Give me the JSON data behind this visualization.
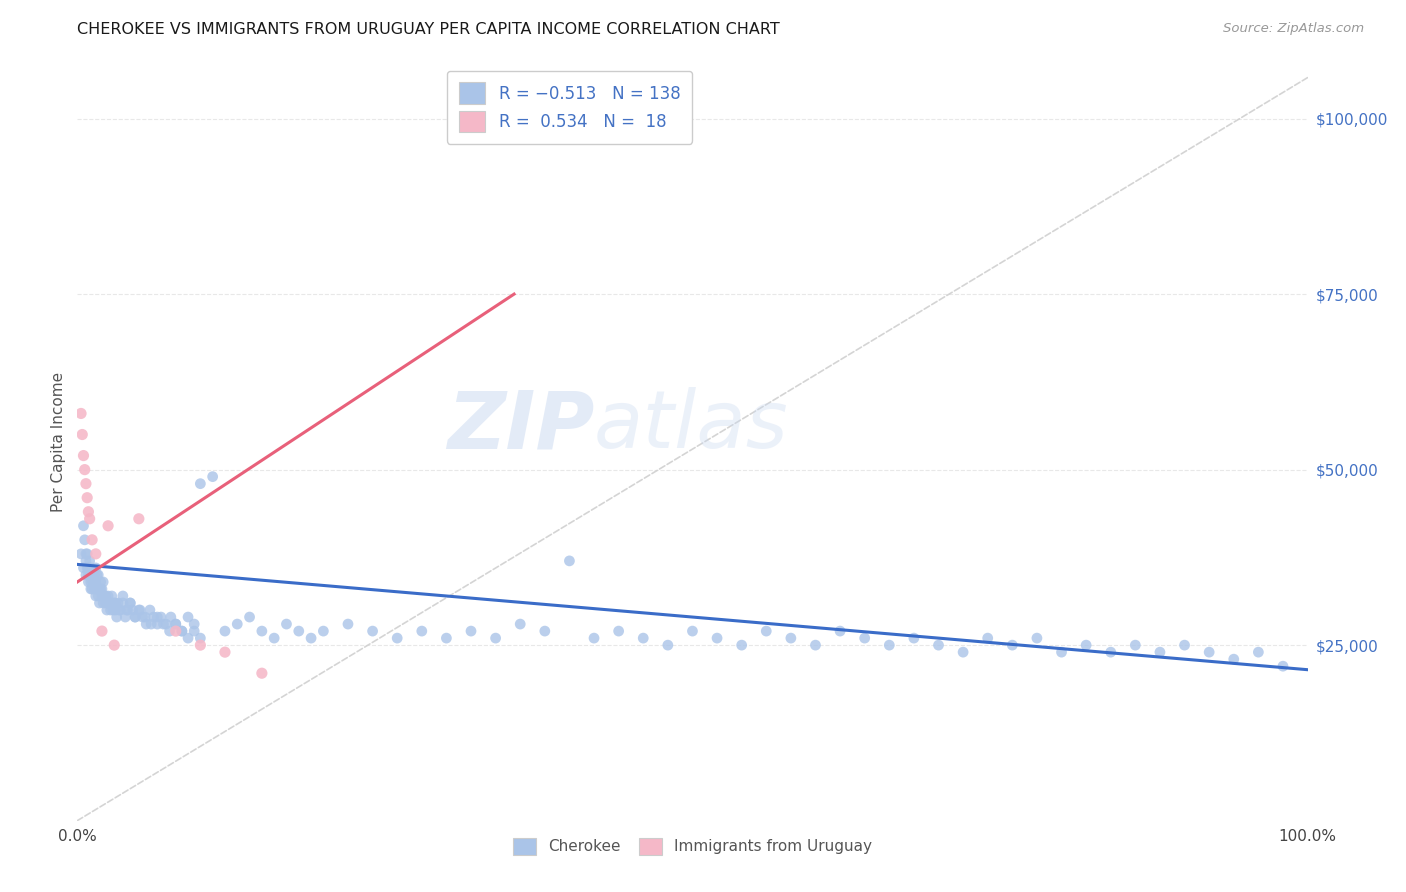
{
  "title": "CHEROKEE VS IMMIGRANTS FROM URUGUAY PER CAPITA INCOME CORRELATION CHART",
  "source": "Source: ZipAtlas.com",
  "ylabel": "Per Capita Income",
  "ytick_values": [
    25000,
    50000,
    75000,
    100000
  ],
  "ylim": [
    0,
    108000
  ],
  "xlim": [
    0.0,
    1.0
  ],
  "legend_label1": "Cherokee",
  "legend_label2": "Immigrants from Uruguay",
  "watermark_zip": "ZIP",
  "watermark_atlas": "atlas",
  "cherokee_color": "#aac4e8",
  "cherokee_line_color": "#3a6cc8",
  "uruguay_color": "#f5b8c8",
  "uruguay_line_color": "#e8607a",
  "diagonal_color": "#d0d0d0",
  "background_color": "#ffffff",
  "grid_color": "#e8e8e8",
  "R_cherokee": -0.513,
  "N_cherokee": 138,
  "R_uruguay": 0.534,
  "N_uruguay": 18,
  "cherokee_scatter_x": [
    0.003,
    0.005,
    0.005,
    0.006,
    0.007,
    0.007,
    0.008,
    0.008,
    0.009,
    0.009,
    0.01,
    0.01,
    0.011,
    0.011,
    0.012,
    0.012,
    0.013,
    0.014,
    0.014,
    0.015,
    0.015,
    0.016,
    0.016,
    0.017,
    0.018,
    0.018,
    0.019,
    0.02,
    0.02,
    0.021,
    0.022,
    0.023,
    0.024,
    0.025,
    0.026,
    0.027,
    0.028,
    0.029,
    0.03,
    0.031,
    0.032,
    0.033,
    0.035,
    0.037,
    0.039,
    0.041,
    0.043,
    0.045,
    0.047,
    0.05,
    0.053,
    0.056,
    0.059,
    0.062,
    0.065,
    0.068,
    0.072,
    0.076,
    0.08,
    0.085,
    0.09,
    0.095,
    0.1,
    0.11,
    0.12,
    0.13,
    0.14,
    0.15,
    0.16,
    0.17,
    0.18,
    0.19,
    0.2,
    0.22,
    0.24,
    0.26,
    0.28,
    0.3,
    0.32,
    0.34,
    0.36,
    0.38,
    0.4,
    0.42,
    0.44,
    0.46,
    0.48,
    0.5,
    0.52,
    0.54,
    0.56,
    0.58,
    0.6,
    0.62,
    0.64,
    0.66,
    0.68,
    0.7,
    0.72,
    0.74,
    0.76,
    0.78,
    0.8,
    0.82,
    0.84,
    0.86,
    0.88,
    0.9,
    0.92,
    0.94,
    0.96,
    0.98,
    0.007,
    0.009,
    0.011,
    0.013,
    0.015,
    0.017,
    0.019,
    0.021,
    0.023,
    0.025,
    0.028,
    0.031,
    0.034,
    0.037,
    0.04,
    0.043,
    0.047,
    0.051,
    0.055,
    0.06,
    0.065,
    0.07,
    0.075,
    0.08,
    0.085,
    0.09,
    0.095,
    0.1
  ],
  "cherokee_scatter_y": [
    38000,
    42000,
    36000,
    40000,
    37000,
    35000,
    36000,
    38000,
    34000,
    36000,
    35000,
    37000,
    34000,
    36000,
    33000,
    35000,
    34000,
    33000,
    35000,
    34000,
    32000,
    33000,
    35000,
    32000,
    33000,
    31000,
    34000,
    32000,
    33000,
    31000,
    32000,
    31000,
    30000,
    32000,
    31000,
    30000,
    31000,
    30000,
    31000,
    30000,
    29000,
    31000,
    30000,
    32000,
    29000,
    30000,
    31000,
    30000,
    29000,
    30000,
    29000,
    28000,
    30000,
    29000,
    28000,
    29000,
    28000,
    29000,
    28000,
    27000,
    29000,
    28000,
    48000,
    49000,
    27000,
    28000,
    29000,
    27000,
    26000,
    28000,
    27000,
    26000,
    27000,
    28000,
    27000,
    26000,
    27000,
    26000,
    27000,
    26000,
    28000,
    27000,
    37000,
    26000,
    27000,
    26000,
    25000,
    27000,
    26000,
    25000,
    27000,
    26000,
    25000,
    27000,
    26000,
    25000,
    26000,
    25000,
    24000,
    26000,
    25000,
    26000,
    24000,
    25000,
    24000,
    25000,
    24000,
    25000,
    24000,
    23000,
    24000,
    22000,
    38000,
    35000,
    33000,
    34000,
    36000,
    35000,
    33000,
    34000,
    32000,
    31000,
    32000,
    31000,
    30000,
    31000,
    30000,
    31000,
    29000,
    30000,
    29000,
    28000,
    29000,
    28000,
    27000,
    28000,
    27000,
    26000,
    27000,
    26000
  ],
  "uruguay_scatter_x": [
    0.003,
    0.004,
    0.005,
    0.006,
    0.007,
    0.008,
    0.009,
    0.01,
    0.012,
    0.015,
    0.02,
    0.025,
    0.03,
    0.05,
    0.08,
    0.1,
    0.12,
    0.15
  ],
  "uruguay_scatter_y": [
    58000,
    55000,
    52000,
    50000,
    48000,
    46000,
    44000,
    43000,
    40000,
    38000,
    27000,
    42000,
    25000,
    43000,
    27000,
    25000,
    24000,
    21000
  ],
  "uruguay_line_x0": 0.0,
  "uruguay_line_y0": 34000,
  "uruguay_line_x1": 0.355,
  "uruguay_line_y1": 75000,
  "cherokee_line_x0": 0.0,
  "cherokee_line_y0": 36500,
  "cherokee_line_x1": 1.0,
  "cherokee_line_y1": 21500
}
